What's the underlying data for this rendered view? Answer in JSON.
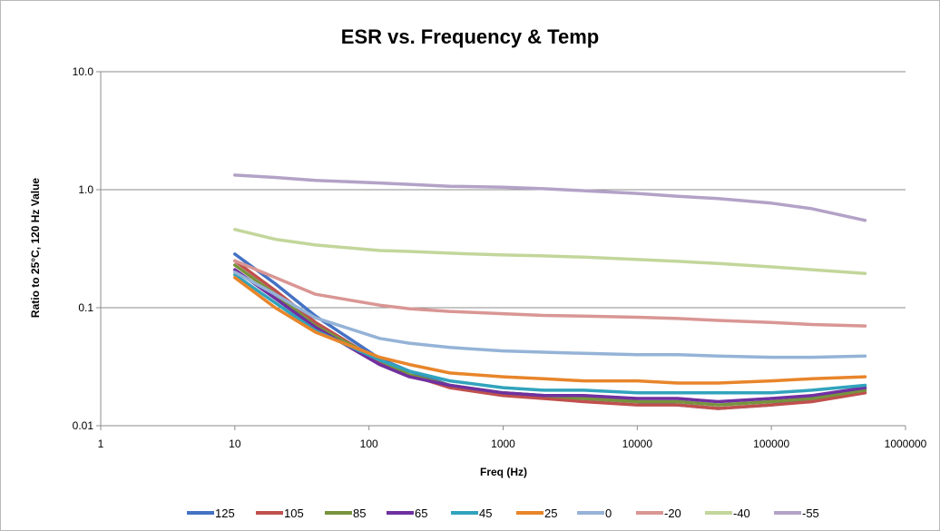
{
  "chart_data": {
    "type": "line",
    "title": "ESR vs. Frequency & Temp",
    "xlabel": "Freq (Hz)",
    "ylabel": "Ratio to 25°C, 120 Hz Value",
    "x_scale": "log",
    "y_scale": "log",
    "xlim": [
      1,
      1000000
    ],
    "ylim": [
      0.01,
      10
    ],
    "x_ticks": [
      "1",
      "10",
      "100",
      "1000",
      "10000",
      "100000",
      "1000000"
    ],
    "y_ticks": [
      "0.01",
      "0.1",
      "1.0",
      "10.0"
    ],
    "grid": "horizontal",
    "legend_position": "bottom",
    "x": [
      10,
      20,
      40,
      120,
      200,
      400,
      1000,
      2000,
      4000,
      10000,
      20000,
      40000,
      100000,
      200000,
      500000
    ],
    "series": [
      {
        "name": "125",
        "color": "#4472c4",
        "values": [
          0.285,
          0.16,
          0.085,
          0.037,
          0.029,
          0.022,
          0.019,
          0.018,
          0.017,
          0.016,
          0.015,
          0.014,
          0.015,
          0.017,
          0.02
        ]
      },
      {
        "name": "105",
        "color": "#c0504d",
        "values": [
          0.25,
          0.14,
          0.075,
          0.035,
          0.027,
          0.021,
          0.018,
          0.017,
          0.016,
          0.015,
          0.015,
          0.014,
          0.015,
          0.016,
          0.019
        ]
      },
      {
        "name": "85",
        "color": "#77933c",
        "values": [
          0.23,
          0.13,
          0.07,
          0.036,
          0.027,
          0.022,
          0.019,
          0.018,
          0.017,
          0.016,
          0.016,
          0.015,
          0.016,
          0.017,
          0.02
        ]
      },
      {
        "name": "65",
        "color": "#7030a0",
        "values": [
          0.21,
          0.12,
          0.068,
          0.033,
          0.026,
          0.022,
          0.019,
          0.018,
          0.018,
          0.017,
          0.017,
          0.016,
          0.017,
          0.018,
          0.021
        ]
      },
      {
        "name": "45",
        "color": "#31a3bc",
        "values": [
          0.19,
          0.11,
          0.064,
          0.036,
          0.029,
          0.024,
          0.021,
          0.02,
          0.02,
          0.019,
          0.019,
          0.019,
          0.019,
          0.02,
          0.022
        ]
      },
      {
        "name": "25",
        "color": "#e8852a",
        "values": [
          0.18,
          0.1,
          0.062,
          0.038,
          0.033,
          0.028,
          0.026,
          0.025,
          0.024,
          0.024,
          0.023,
          0.023,
          0.024,
          0.025,
          0.026
        ]
      },
      {
        "name": "0",
        "color": "#95b3d7",
        "values": [
          0.2,
          0.13,
          0.082,
          0.055,
          0.05,
          0.046,
          0.043,
          0.042,
          0.041,
          0.04,
          0.04,
          0.039,
          0.038,
          0.038,
          0.039
        ]
      },
      {
        "name": "-20",
        "color": "#d99694",
        "values": [
          0.25,
          0.18,
          0.13,
          0.105,
          0.098,
          0.093,
          0.089,
          0.086,
          0.085,
          0.083,
          0.081,
          0.078,
          0.075,
          0.072,
          0.07
        ]
      },
      {
        "name": "-40",
        "color": "#c3d69b",
        "values": [
          0.46,
          0.38,
          0.34,
          0.305,
          0.3,
          0.29,
          0.28,
          0.275,
          0.268,
          0.256,
          0.247,
          0.237,
          0.222,
          0.21,
          0.195
        ]
      },
      {
        "name": "-55",
        "color": "#b3a2c7",
        "values": [
          1.33,
          1.27,
          1.2,
          1.14,
          1.11,
          1.07,
          1.05,
          1.02,
          0.98,
          0.93,
          0.88,
          0.84,
          0.77,
          0.69,
          0.55
        ]
      }
    ]
  }
}
